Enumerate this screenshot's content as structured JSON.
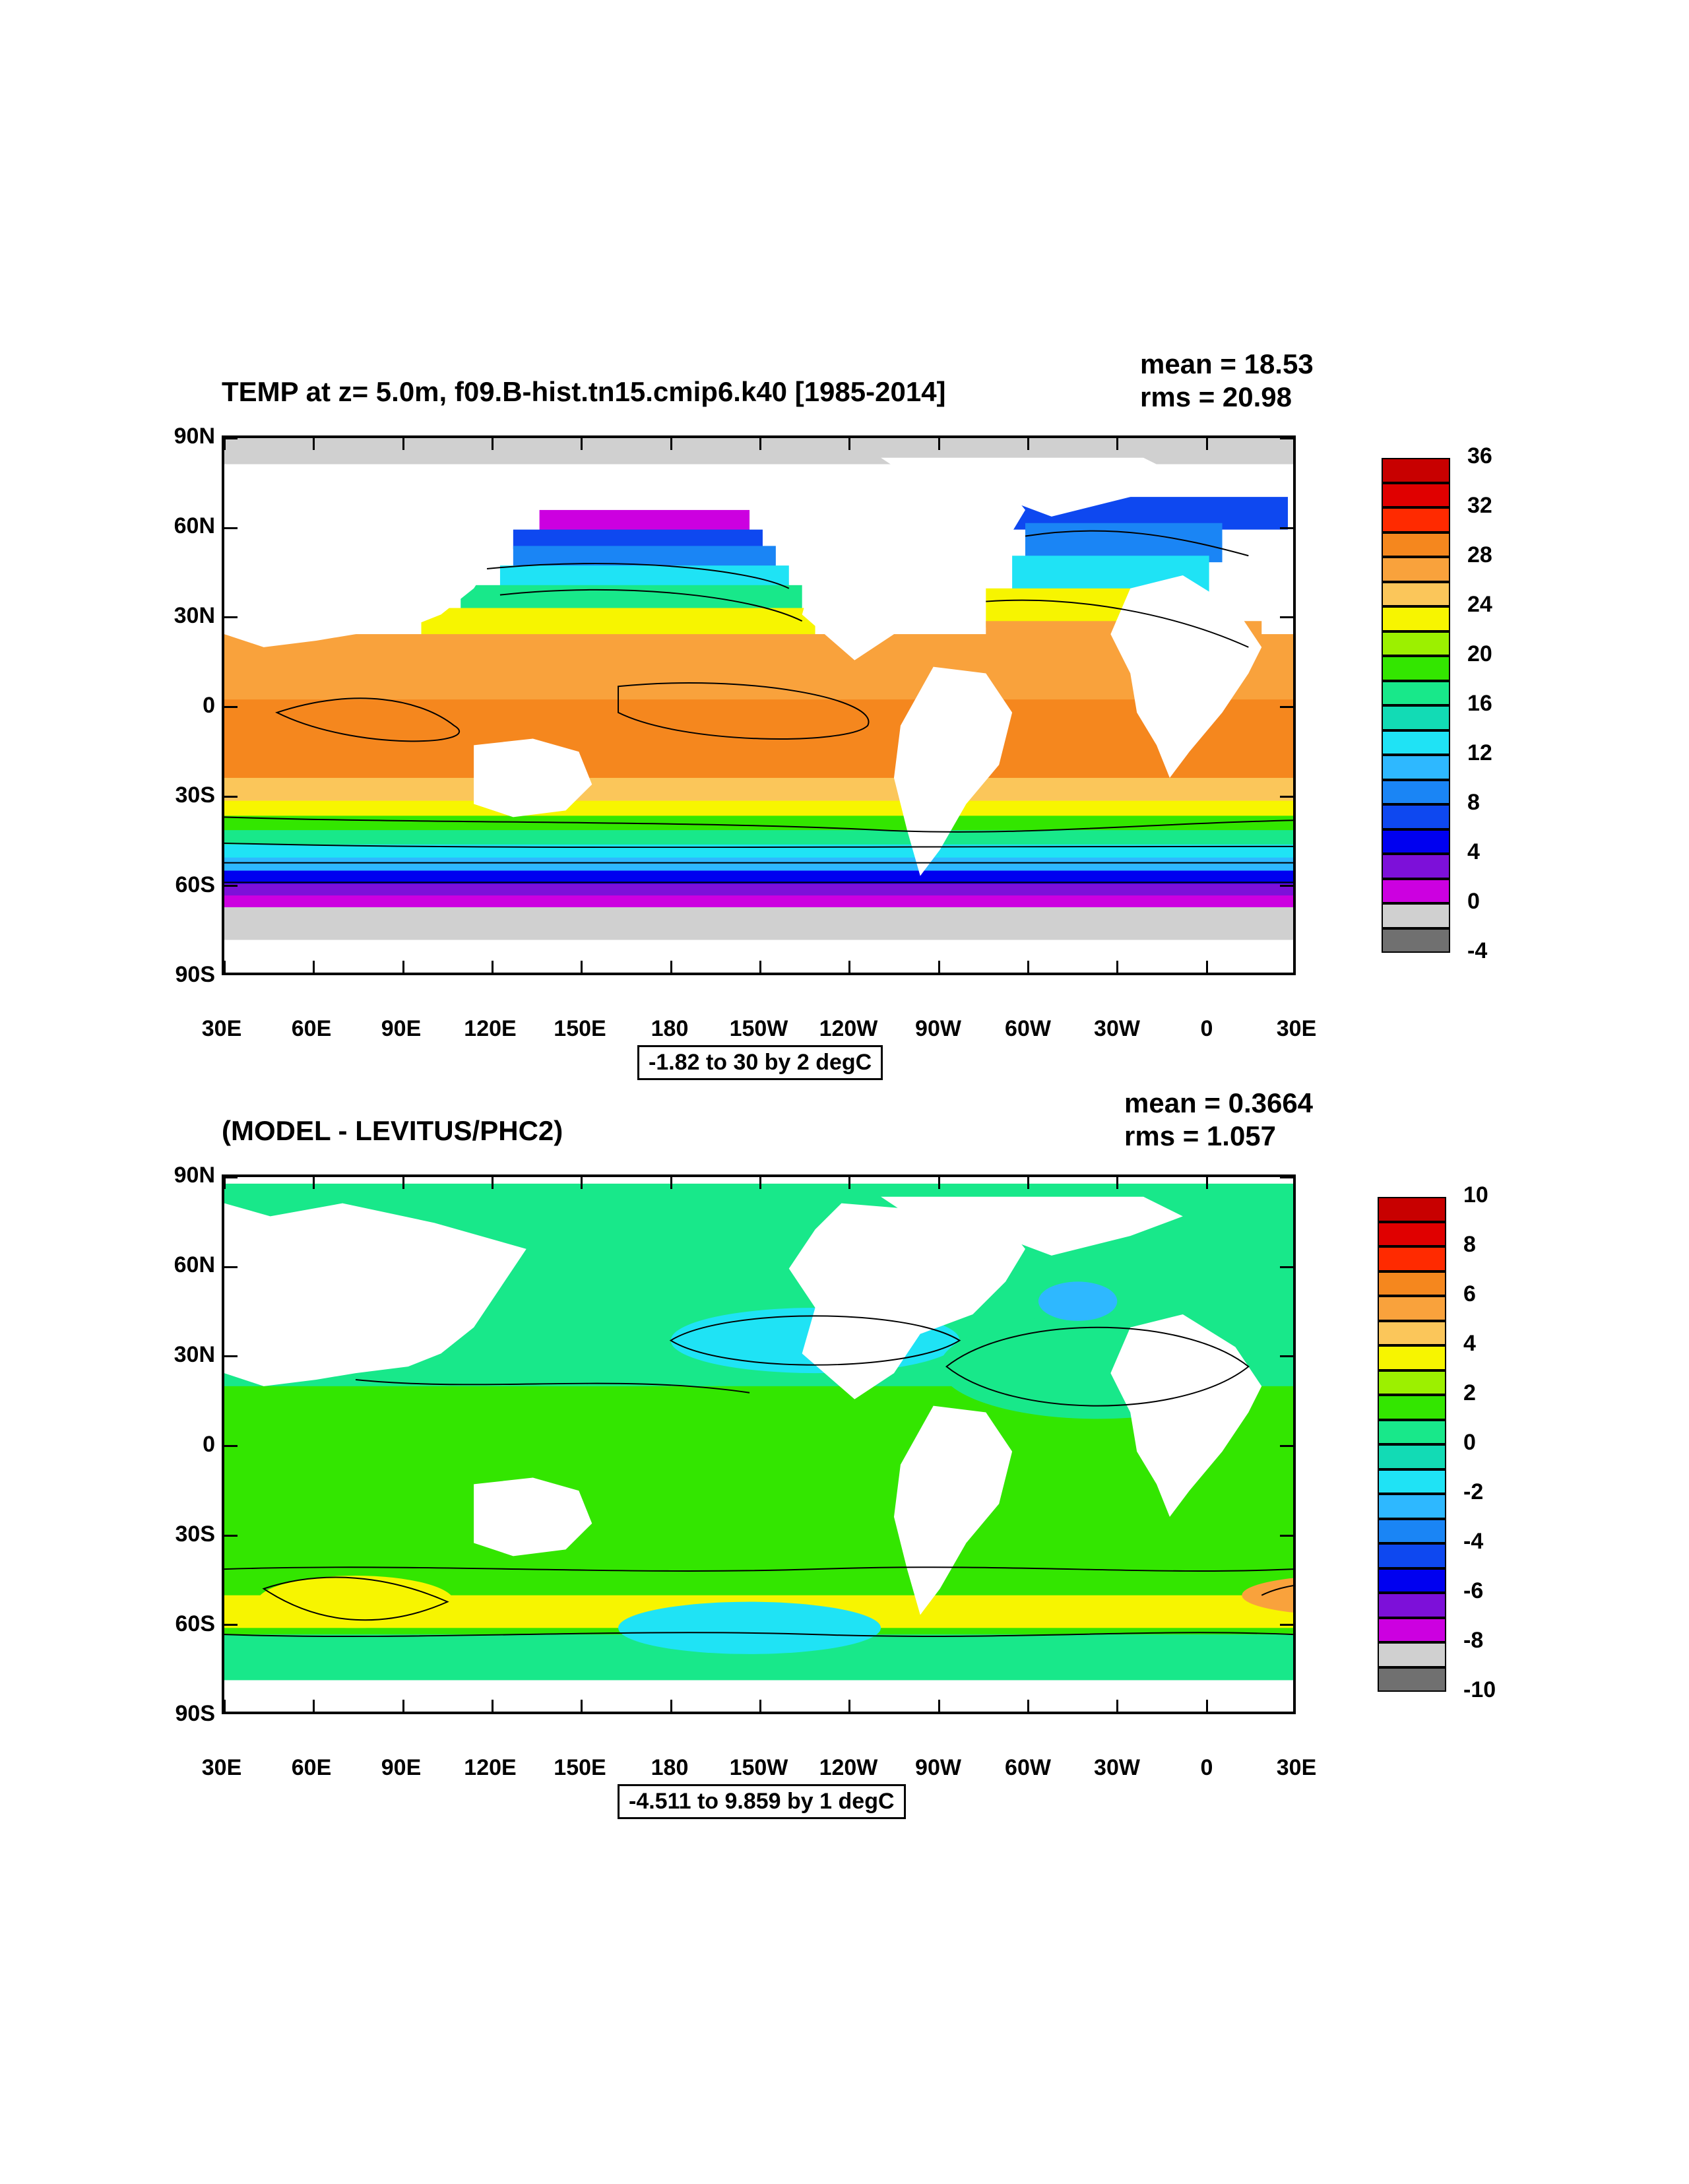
{
  "panel1": {
    "title": "TEMP at z=   5.0m, f09.B-hist.tn15.cmip6.k40 [1985-2014]",
    "mean": "mean = 18.53",
    "rms": "rms = 20.98",
    "info": "-1.82 to 30 by 2 degC",
    "colorbar": {
      "labels": [
        "36",
        "32",
        "28",
        "24",
        "20",
        "16",
        "12",
        "8",
        "4",
        "0",
        "-4"
      ],
      "colors": [
        "#c80000",
        "#e00000",
        "#ff2a00",
        "#f5871e",
        "#f9a23c",
        "#fbc65a",
        "#f7f500",
        "#9cf000",
        "#33e600",
        "#18e88a",
        "#12dbb5",
        "#1fe3f5",
        "#2eb8ff",
        "#1a85f5",
        "#0e48f0",
        "#0000f0",
        "#7d10d9",
        "#cc00e0",
        "#d0d0d0",
        "#707070"
      ]
    }
  },
  "panel2": {
    "title": "(MODEL - LEVITUS/PHC2)",
    "mean": "mean = 0.3664",
    "rms": "rms = 1.057",
    "info": "-4.511 to 9.859 by 1 degC",
    "colorbar": {
      "labels": [
        "10",
        "8",
        "6",
        "4",
        "2",
        "0",
        "-2",
        "-4",
        "-6",
        "-8",
        "-10"
      ],
      "colors": [
        "#c80000",
        "#e00000",
        "#ff2a00",
        "#f5871e",
        "#f9a23c",
        "#fbc65a",
        "#f7f500",
        "#9cf000",
        "#33e600",
        "#18e88a",
        "#12dbb5",
        "#1fe3f5",
        "#2eb8ff",
        "#1a85f5",
        "#0e48f0",
        "#0000f0",
        "#7d10d9",
        "#cc00e0",
        "#d0d0d0",
        "#707070"
      ]
    }
  },
  "axes": {
    "ylabels": [
      "90N",
      "60N",
      "30N",
      "0",
      "30S",
      "60S",
      "90S"
    ],
    "xlabels": [
      "30E",
      "60E",
      "90E",
      "120E",
      "150E",
      "180",
      "150W",
      "120W",
      "90W",
      "60W",
      "30W",
      "0",
      "30E"
    ]
  }
}
